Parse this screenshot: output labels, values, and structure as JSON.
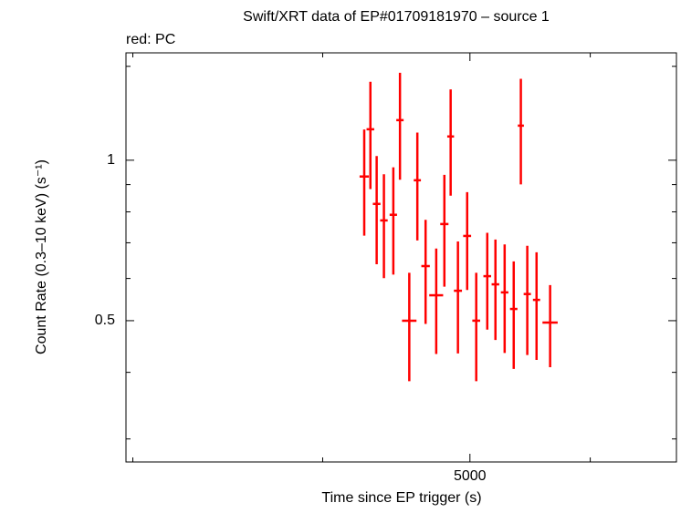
{
  "chart_data": {
    "type": "errorbar",
    "title": "Swift/XRT data of EP#01709181970 – source 1",
    "subtitle": "red: PC",
    "x_label": "Time since EP trigger (s)",
    "y_label": "Count Rate (0.3–10 keV) (s⁻¹)",
    "xlog": true,
    "ylog": true,
    "xlim": [
      2969,
      6837
    ],
    "ylim": [
      0.2716,
      1.59
    ],
    "xticks": [
      5000
    ],
    "x_minor_ticks": [
      3000,
      4000,
      6000
    ],
    "yticks": [
      0.5,
      1
    ],
    "y_minor_ticks": [
      0.3,
      0.4,
      0.6,
      0.7,
      0.8,
      0.9,
      1.5
    ],
    "series": [
      {
        "name": "PC",
        "color": "#ff0000",
        "x": [
          4260,
          4300,
          4341,
          4389,
          4452,
          4497,
          4561,
          4617,
          4675,
          4751,
          4810,
          4856,
          4910,
          4979,
          5048,
          5133,
          5197,
          5270,
          5343,
          5401,
          5454,
          5531,
          5646
        ],
        "xerr": [
          30,
          25,
          25,
          25,
          25,
          25,
          50,
          25,
          30,
          50,
          30,
          25,
          30,
          30,
          30,
          30,
          30,
          30,
          30,
          25,
          30,
          30,
          65
        ],
        "values": [
          0.932,
          1.143,
          0.828,
          0.771,
          0.79,
          1.189,
          0.5,
          0.917,
          0.633,
          0.558,
          0.759,
          1.108,
          0.569,
          0.721,
          0.5,
          0.606,
          0.585,
          0.565,
          0.526,
          1.161,
          0.561,
          0.547,
          0.496
        ],
        "yerr": [
          0.21,
          0.26,
          0.19,
          0.17,
          0.18,
          0.27,
          0.115,
          0.21,
          0.14,
          0.125,
          0.18,
          0.25,
          0.135,
          0.15,
          0.115,
          0.125,
          0.125,
          0.13,
          0.12,
          0.26,
          0.13,
          0.125,
          0.087
        ]
      }
    ]
  }
}
